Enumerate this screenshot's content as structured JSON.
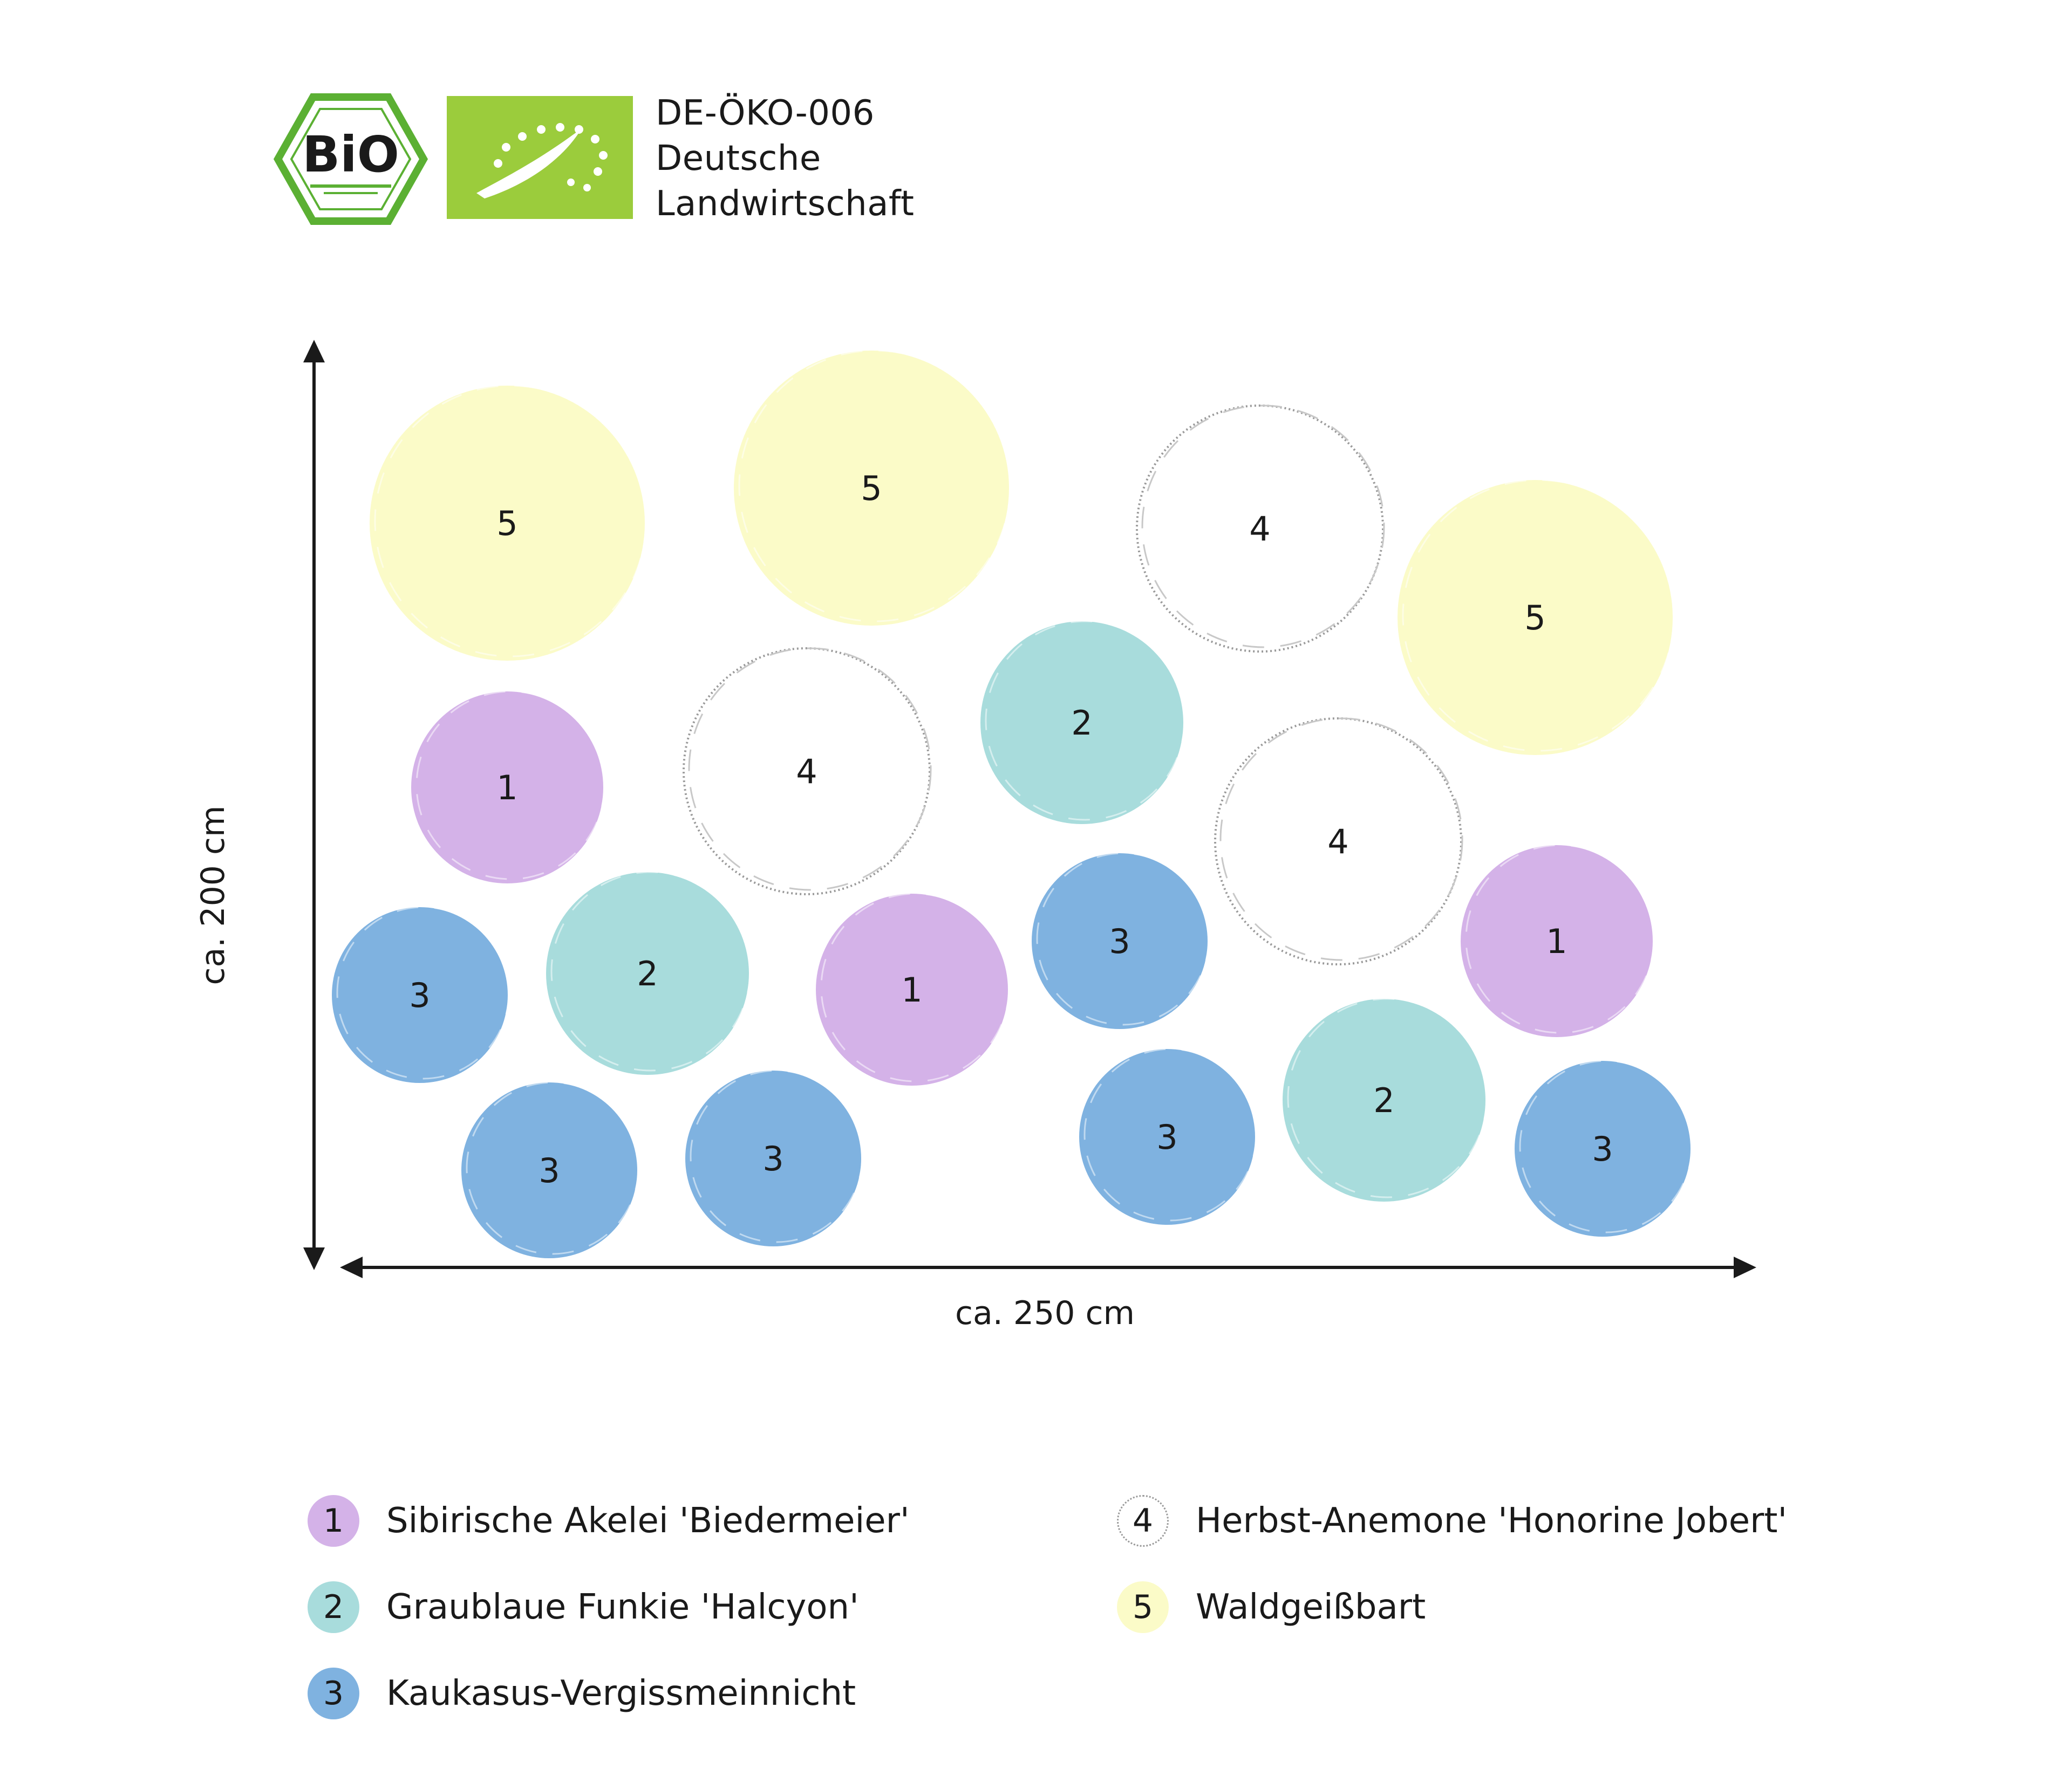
{
  "certification": {
    "bio_logo_text": "BiO",
    "code": "DE-ÖKO-006",
    "line2": "Deutsche",
    "line3": "Landwirtschaft"
  },
  "dimensions": {
    "width_label": "ca. 250 cm",
    "height_label": "ca. 200 cm"
  },
  "plants": {
    "1": {
      "label": "Sibirische Akelei 'Biedermeier'",
      "color": "#d4b2e8"
    },
    "2": {
      "label": "Graublaue Funkie 'Halcyon'",
      "color": "#a8dcdc"
    },
    "3": {
      "label": "Kaukasus-Vergissmeinnicht",
      "color": "#7fb2e0"
    },
    "4": {
      "label": "Herbst-Anemone 'Honorine Jobert'",
      "color": "#ffffff"
    },
    "5": {
      "label": "Waldgeißbart",
      "color": "#fbfbc8"
    }
  },
  "legend": [
    {
      "num": "1",
      "label": "Sibirische Akelei 'Biedermeier'"
    },
    {
      "num": "2",
      "label": "Graublaue Funkie 'Halcyon'"
    },
    {
      "num": "3",
      "label": "Kaukasus-Vergissmeinnicht"
    },
    {
      "num": "4",
      "label": "Herbst-Anemone 'Honorine Jobert'"
    },
    {
      "num": "5",
      "label": "Waldgeißbart"
    }
  ],
  "bed_positions": [
    "5",
    "5",
    "4",
    "5",
    "1",
    "4",
    "2",
    "4",
    "3",
    "2",
    "1",
    "3",
    "1",
    "3",
    "3",
    "3",
    "2",
    "3"
  ]
}
